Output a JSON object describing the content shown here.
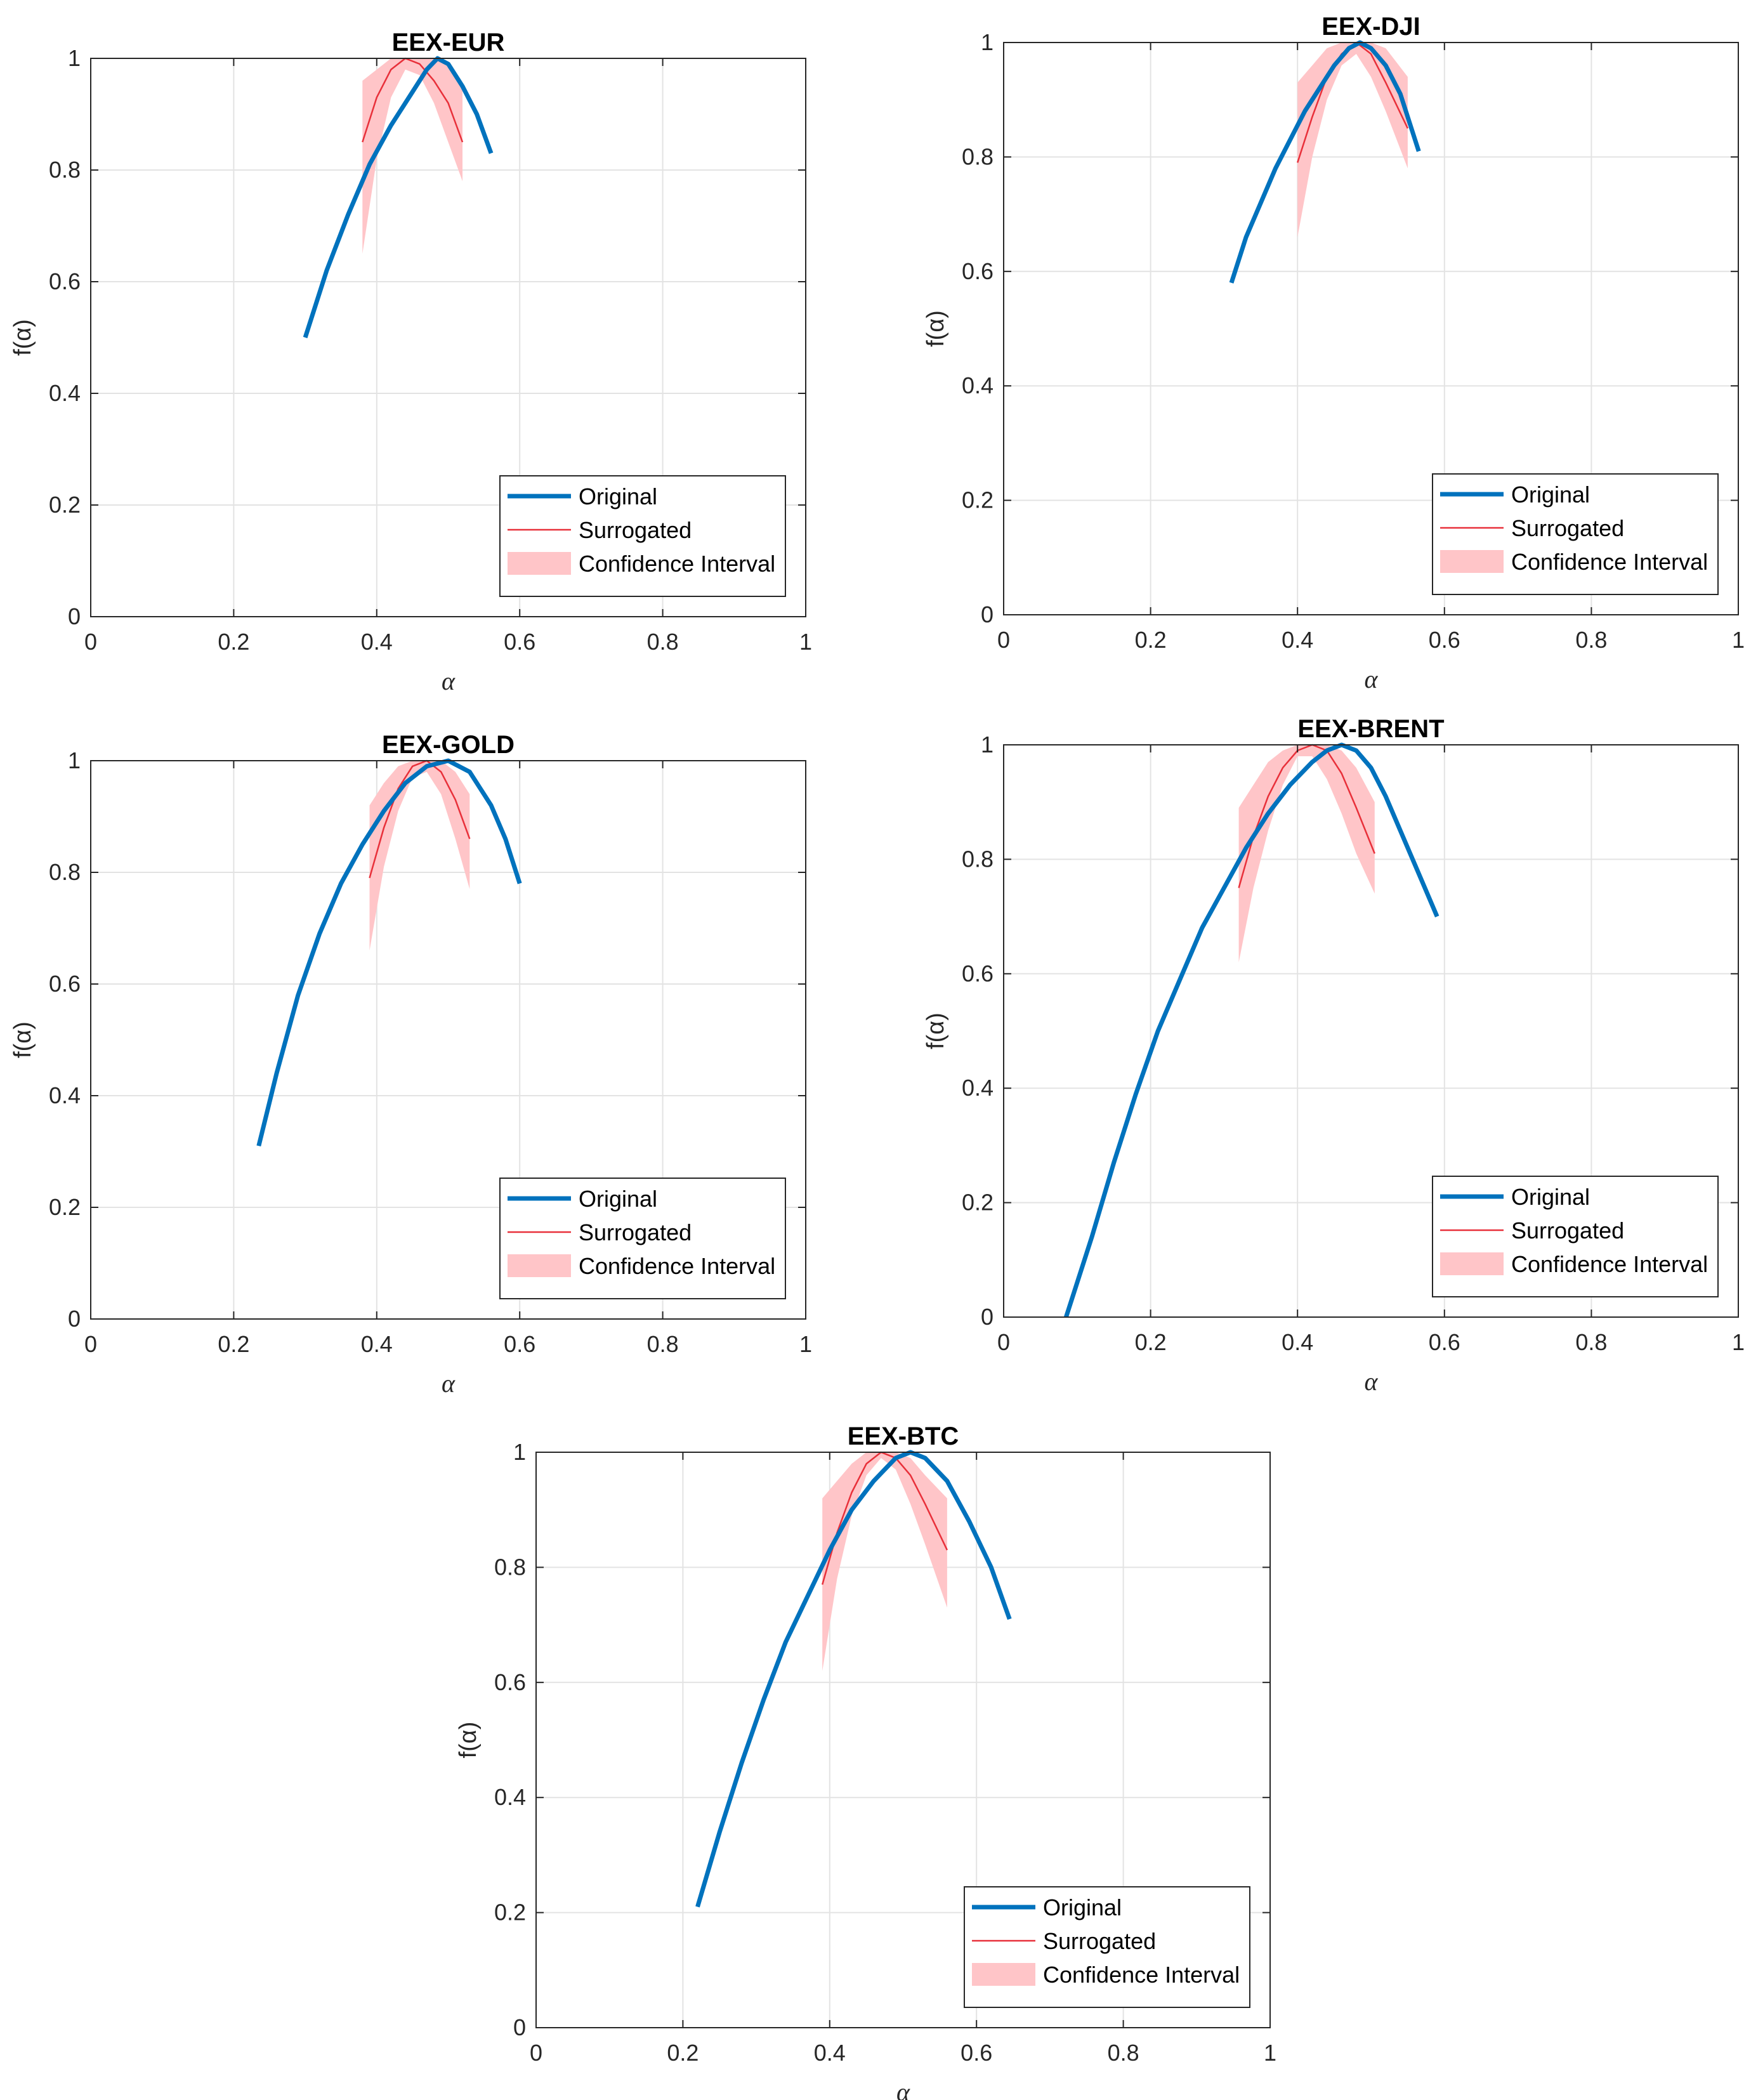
{
  "colors": {
    "original": "#0072BD",
    "surrogated": "#E8303A",
    "confidence_interval": "#FFC5C8",
    "grid": "#E3E3E3",
    "axes": "#262626"
  },
  "chart_data": [
    {
      "type": "line",
      "title": "EEX-EUR",
      "xlabel": "α",
      "ylabel": "f(α)",
      "xlim": [
        0,
        1
      ],
      "ylim": [
        0,
        1
      ],
      "xticks": [
        "0",
        "0.2",
        "0.4",
        "0.6",
        "0.8",
        "1"
      ],
      "yticks": [
        "0",
        "0.2",
        "0.4",
        "0.6",
        "0.8",
        "1"
      ],
      "grid": true,
      "legend": {
        "position": "bottom-right",
        "entries": [
          "Original",
          "Surrogated",
          "Confidence Interval"
        ]
      },
      "original": {
        "x": [
          0.3,
          0.33,
          0.36,
          0.39,
          0.42,
          0.45,
          0.47,
          0.485,
          0.5,
          0.52,
          0.54,
          0.56
        ],
        "y": [
          0.5,
          0.62,
          0.72,
          0.81,
          0.88,
          0.94,
          0.98,
          1.0,
          0.99,
          0.95,
          0.9,
          0.83
        ]
      },
      "surrogated": {
        "x": [
          0.38,
          0.4,
          0.42,
          0.44,
          0.46,
          0.48,
          0.5,
          0.52
        ],
        "y": [
          0.85,
          0.93,
          0.98,
          1.0,
          0.99,
          0.96,
          0.92,
          0.85
        ]
      },
      "confidence_interval": {
        "x": [
          0.38,
          0.4,
          0.42,
          0.44,
          0.46,
          0.48,
          0.5,
          0.52
        ],
        "upper": [
          0.96,
          0.98,
          1.0,
          1.0,
          1.0,
          1.0,
          0.99,
          0.95
        ],
        "lower": [
          0.65,
          0.82,
          0.93,
          0.98,
          0.97,
          0.92,
          0.85,
          0.78
        ]
      }
    },
    {
      "type": "line",
      "title": "EEX-DJI",
      "xlabel": "α",
      "ylabel": "f(α)",
      "xlim": [
        0,
        1
      ],
      "ylim": [
        0,
        1
      ],
      "xticks": [
        "0",
        "0.2",
        "0.4",
        "0.6",
        "0.8",
        "1"
      ],
      "yticks": [
        "0",
        "0.2",
        "0.4",
        "0.6",
        "0.8",
        "1"
      ],
      "grid": true,
      "legend": {
        "position": "bottom-right",
        "entries": [
          "Original",
          "Surrogated",
          "Confidence Interval"
        ]
      },
      "original": {
        "x": [
          0.31,
          0.33,
          0.35,
          0.37,
          0.39,
          0.41,
          0.43,
          0.45,
          0.47,
          0.485,
          0.5,
          0.52,
          0.54,
          0.565
        ],
        "y": [
          0.58,
          0.66,
          0.72,
          0.78,
          0.83,
          0.88,
          0.92,
          0.96,
          0.99,
          1.0,
          0.99,
          0.96,
          0.91,
          0.81
        ]
      },
      "surrogated": {
        "x": [
          0.4,
          0.42,
          0.44,
          0.46,
          0.48,
          0.5,
          0.52,
          0.55
        ],
        "y": [
          0.79,
          0.87,
          0.94,
          0.98,
          1.0,
          0.98,
          0.93,
          0.85
        ]
      },
      "confidence_interval": {
        "x": [
          0.4,
          0.42,
          0.44,
          0.46,
          0.48,
          0.5,
          0.52,
          0.55
        ],
        "upper": [
          0.93,
          0.96,
          0.99,
          1.0,
          1.0,
          1.0,
          0.99,
          0.94
        ],
        "lower": [
          0.66,
          0.8,
          0.9,
          0.96,
          0.98,
          0.94,
          0.88,
          0.78
        ]
      }
    },
    {
      "type": "line",
      "title": "EEX-GOLD",
      "xlabel": "α",
      "ylabel": "f(α)",
      "xlim": [
        0,
        1
      ],
      "ylim": [
        0,
        1
      ],
      "xticks": [
        "0",
        "0.2",
        "0.4",
        "0.6",
        "0.8",
        "1"
      ],
      "yticks": [
        "0",
        "0.2",
        "0.4",
        "0.6",
        "0.8",
        "1"
      ],
      "grid": true,
      "legend": {
        "position": "bottom-right",
        "entries": [
          "Original",
          "Surrogated",
          "Confidence Interval"
        ]
      },
      "original": {
        "x": [
          0.235,
          0.26,
          0.29,
          0.32,
          0.35,
          0.38,
          0.41,
          0.44,
          0.47,
          0.5,
          0.53,
          0.56,
          0.58,
          0.6
        ],
        "y": [
          0.31,
          0.44,
          0.58,
          0.69,
          0.78,
          0.85,
          0.91,
          0.96,
          0.99,
          1.0,
          0.98,
          0.92,
          0.86,
          0.78
        ]
      },
      "surrogated": {
        "x": [
          0.39,
          0.41,
          0.43,
          0.45,
          0.47,
          0.49,
          0.51,
          0.53
        ],
        "y": [
          0.79,
          0.88,
          0.95,
          0.99,
          1.0,
          0.98,
          0.93,
          0.86
        ]
      },
      "confidence_interval": {
        "x": [
          0.39,
          0.41,
          0.43,
          0.45,
          0.47,
          0.49,
          0.51,
          0.53
        ],
        "upper": [
          0.92,
          0.96,
          0.99,
          1.0,
          1.0,
          1.0,
          0.98,
          0.94
        ],
        "lower": [
          0.66,
          0.81,
          0.91,
          0.97,
          0.98,
          0.94,
          0.86,
          0.77
        ]
      }
    },
    {
      "type": "line",
      "title": "EEX-BRENT",
      "xlabel": "α",
      "ylabel": "f(α)",
      "xlim": [
        0,
        1
      ],
      "ylim": [
        0,
        1
      ],
      "xticks": [
        "0",
        "0.2",
        "0.4",
        "0.6",
        "0.8",
        "1"
      ],
      "yticks": [
        "0",
        "0.2",
        "0.4",
        "0.6",
        "0.8",
        "1"
      ],
      "grid": true,
      "legend": {
        "position": "bottom-right",
        "entries": [
          "Original",
          "Surrogated",
          "Confidence Interval"
        ]
      },
      "original": {
        "x": [
          0.085,
          0.12,
          0.15,
          0.18,
          0.21,
          0.24,
          0.27,
          0.3,
          0.33,
          0.36,
          0.39,
          0.42,
          0.44,
          0.46,
          0.48,
          0.5,
          0.52,
          0.54,
          0.57,
          0.59
        ],
        "y": [
          0.0,
          0.14,
          0.27,
          0.39,
          0.5,
          0.59,
          0.68,
          0.75,
          0.82,
          0.88,
          0.93,
          0.97,
          0.99,
          1.0,
          0.99,
          0.96,
          0.91,
          0.85,
          0.76,
          0.7
        ]
      },
      "surrogated": {
        "x": [
          0.32,
          0.34,
          0.36,
          0.38,
          0.4,
          0.42,
          0.44,
          0.46,
          0.48,
          0.505
        ],
        "y": [
          0.75,
          0.84,
          0.91,
          0.96,
          0.99,
          1.0,
          0.99,
          0.95,
          0.89,
          0.81
        ]
      },
      "confidence_interval": {
        "x": [
          0.32,
          0.34,
          0.36,
          0.38,
          0.4,
          0.42,
          0.44,
          0.46,
          0.48,
          0.505
        ],
        "upper": [
          0.89,
          0.93,
          0.97,
          0.99,
          1.0,
          1.0,
          1.0,
          0.99,
          0.96,
          0.9
        ],
        "lower": [
          0.62,
          0.75,
          0.85,
          0.93,
          0.98,
          0.98,
          0.94,
          0.88,
          0.81,
          0.74
        ]
      }
    },
    {
      "type": "line",
      "title": "EEX-BTC",
      "xlabel": "α",
      "ylabel": "f(α)",
      "xlim": [
        0,
        1
      ],
      "ylim": [
        0,
        1
      ],
      "xticks": [
        "0",
        "0.2",
        "0.4",
        "0.6",
        "0.8",
        "1"
      ],
      "yticks": [
        "0",
        "0.2",
        "0.4",
        "0.6",
        "0.8",
        "1"
      ],
      "grid": true,
      "legend": {
        "position": "bottom-right",
        "entries": [
          "Original",
          "Surrogated",
          "Confidence Interval"
        ]
      },
      "original": {
        "x": [
          0.22,
          0.25,
          0.28,
          0.31,
          0.34,
          0.37,
          0.4,
          0.43,
          0.46,
          0.49,
          0.51,
          0.53,
          0.56,
          0.59,
          0.62,
          0.645
        ],
        "y": [
          0.21,
          0.34,
          0.46,
          0.57,
          0.67,
          0.75,
          0.83,
          0.9,
          0.95,
          0.99,
          1.0,
          0.99,
          0.95,
          0.88,
          0.8,
          0.71
        ]
      },
      "surrogated": {
        "x": [
          0.39,
          0.41,
          0.43,
          0.45,
          0.47,
          0.49,
          0.51,
          0.53,
          0.56
        ],
        "y": [
          0.77,
          0.86,
          0.93,
          0.98,
          1.0,
          0.99,
          0.96,
          0.91,
          0.83
        ]
      },
      "confidence_interval": {
        "x": [
          0.39,
          0.41,
          0.43,
          0.45,
          0.47,
          0.49,
          0.51,
          0.53,
          0.56
        ],
        "upper": [
          0.92,
          0.95,
          0.98,
          1.0,
          1.0,
          1.0,
          0.99,
          0.96,
          0.92
        ],
        "lower": [
          0.62,
          0.78,
          0.89,
          0.96,
          0.99,
          0.97,
          0.91,
          0.84,
          0.73
        ]
      }
    }
  ]
}
